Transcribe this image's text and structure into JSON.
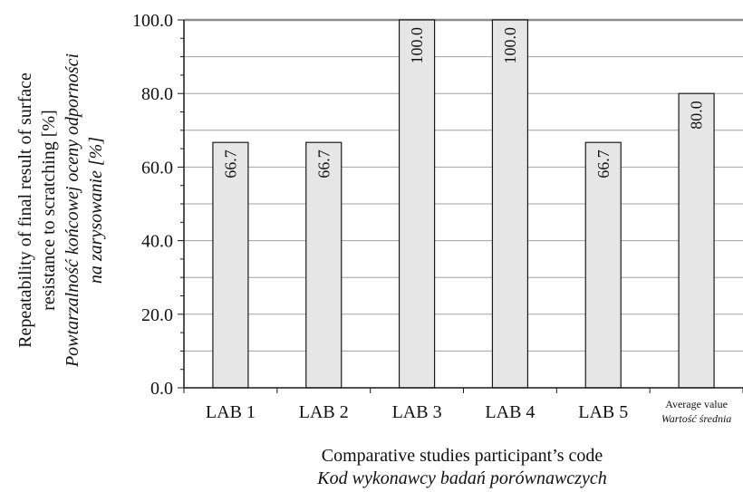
{
  "chart_data": {
    "type": "bar",
    "categories": [
      "LAB 1",
      "LAB 2",
      "LAB 3",
      "LAB 4",
      "LAB 5",
      "Average value"
    ],
    "categories_secondary": [
      "",
      "",
      "",
      "",
      "",
      "Wartość średnia"
    ],
    "values": [
      66.7,
      66.7,
      100.0,
      100.0,
      66.7,
      80.0
    ],
    "data_labels": [
      "66.7",
      "66.7",
      "100.0",
      "100.0",
      "66.7",
      "80.0"
    ],
    "ylim": [
      0,
      100
    ],
    "yticks": [
      "0.0",
      "20.0",
      "40.0",
      "60.0",
      "80.0",
      "100.0"
    ],
    "xlabel": "Comparative studies participant’s code",
    "xlabel_secondary": "Kod wykonawcy badań porównawczych",
    "ylabel_lines": [
      "Repeatability of final result of surface",
      "resistance to scratching [%]"
    ],
    "ylabel_secondary_lines": [
      "Powtarzalność końcowej oceny odporności",
      "na zarysowanie [%]"
    ],
    "grid": true,
    "colors": {
      "bar_fill": "#e6e6e6",
      "bar_stroke": "#1a1a1a",
      "grid": "#a0a0a0",
      "axis": "#1a1a1a"
    }
  }
}
